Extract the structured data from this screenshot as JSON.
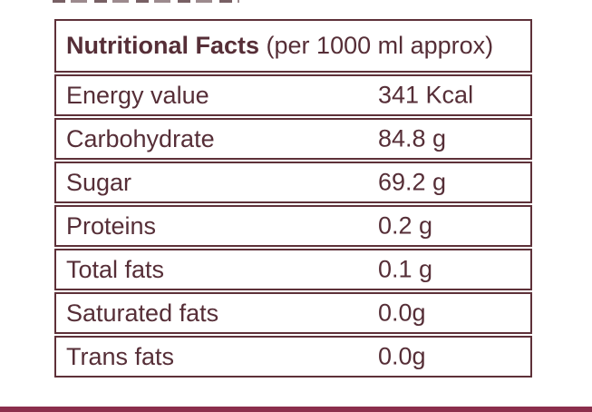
{
  "title": {
    "bold": "Nutritional Facts",
    "rest": " (per 1000 ml approx)"
  },
  "table": {
    "rows": [
      {
        "label": "Energy value",
        "value": "341 Kcal"
      },
      {
        "label": "Carbohydrate",
        "value": "84.8 g"
      },
      {
        "label": "Sugar",
        "value": "69.2 g"
      },
      {
        "label": "Proteins",
        "value": "0.2 g"
      },
      {
        "label": "Total fats",
        "value": "0.1 g"
      },
      {
        "label": "Saturated fats",
        "value": "0.0g"
      },
      {
        "label": "Trans fats",
        "value": "0.0g"
      }
    ]
  },
  "colors": {
    "background": "#ffffff",
    "text": "#562e37",
    "border": "#5e3139",
    "bottom_bar": "#8b2e4c"
  }
}
